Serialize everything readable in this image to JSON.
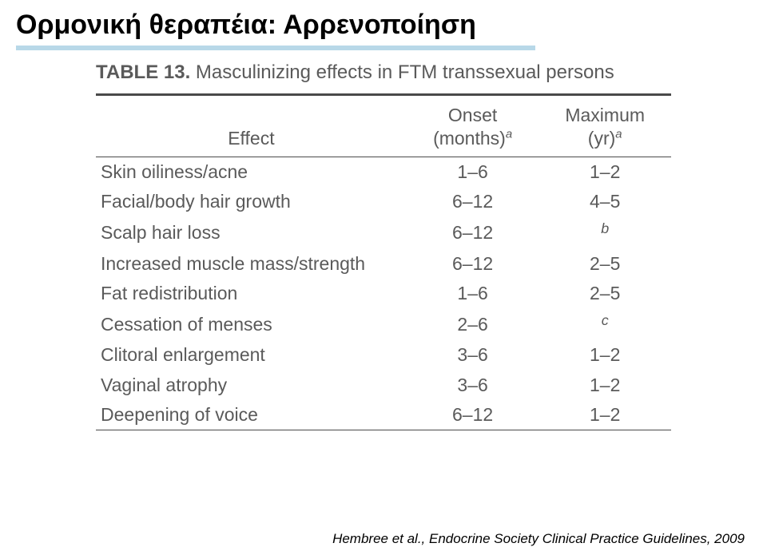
{
  "title": "Ορμονική θεραπέια: Αρρενοποίηση",
  "table": {
    "caption_prefix": "TABLE 13.",
    "caption_text": "Masculinizing effects in FTM transsexual persons",
    "headers": {
      "effect": "Effect",
      "onset_line1": "Onset",
      "onset_line2": "(months)",
      "max_line1": "Maximum",
      "max_line2": "(yr)",
      "supA": "a",
      "supB": "b",
      "supC": "c"
    },
    "rows": [
      {
        "effect": "Skin oiliness/acne",
        "onset": "1–6",
        "max": "1–2"
      },
      {
        "effect": "Facial/body hair growth",
        "onset": "6–12",
        "max": "4–5"
      },
      {
        "effect": "Scalp hair loss",
        "onset": "6–12",
        "max": "",
        "max_fn": "b"
      },
      {
        "effect": "Increased muscle mass/strength",
        "onset": "6–12",
        "max": "2–5"
      },
      {
        "effect": "Fat redistribution",
        "onset": "1–6",
        "max": "2–5"
      },
      {
        "effect": "Cessation of menses",
        "onset": "2–6",
        "max": "",
        "max_fn": "c"
      },
      {
        "effect": "Clitoral enlargement",
        "onset": "3–6",
        "max": "1–2"
      },
      {
        "effect": "Vaginal atrophy",
        "onset": "3–6",
        "max": "1–2"
      },
      {
        "effect": "Deepening of voice",
        "onset": "6–12",
        "max": "1–2"
      }
    ]
  },
  "citation": "Hembree et al., Endocrine Society Clinical Practice Guidelines, 2009",
  "colors": {
    "title_underline": "#b8d8e8",
    "text": "#5a5a5a",
    "rule": "#4a4a4a",
    "bg": "#ffffff"
  }
}
